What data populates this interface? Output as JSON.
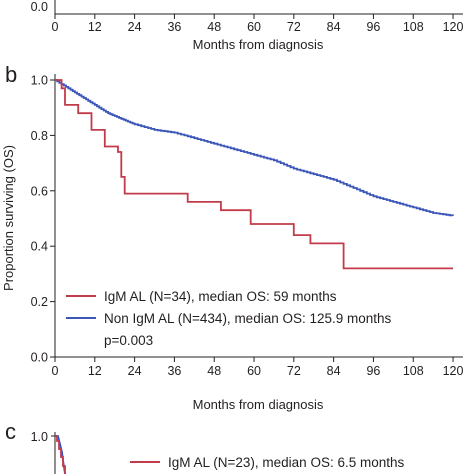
{
  "colors": {
    "red": "#c23b4a",
    "blue": "#3b55b8",
    "axis": "#231f20"
  },
  "chart_data": [
    {
      "panel": "a",
      "type": "line",
      "xlabel": "Months from diagnosis",
      "x_ticks": [
        "0",
        "12",
        "24",
        "36",
        "48",
        "60",
        "72",
        "84",
        "96",
        "108",
        "120"
      ],
      "y_ticks": [
        "0.0"
      ],
      "xlim": [
        0,
        123
      ]
    },
    {
      "panel": "b",
      "type": "line",
      "xlabel": "Months from diagnosis",
      "ylabel": "Proportion surviving (OS)",
      "x_ticks": [
        "0",
        "12",
        "24",
        "36",
        "48",
        "60",
        "72",
        "84",
        "96",
        "108",
        "120"
      ],
      "y_ticks": [
        "0.0",
        "0.2",
        "0.4",
        "0.6",
        "0.8",
        "1.0"
      ],
      "xlim": [
        0,
        123
      ],
      "ylim": [
        0,
        1
      ],
      "annotation": "p=0.003",
      "series": [
        {
          "name": "IgM AL (N=34), median OS: 59 months",
          "color": "red",
          "step_points": [
            [
              0,
              1.0
            ],
            [
              2,
              0.97
            ],
            [
              3,
              0.91
            ],
            [
              7,
              0.88
            ],
            [
              11,
              0.82
            ],
            [
              15,
              0.76
            ],
            [
              19,
              0.74
            ],
            [
              20,
              0.65
            ],
            [
              21,
              0.59
            ],
            [
              40,
              0.56
            ],
            [
              50,
              0.53
            ],
            [
              59,
              0.48
            ],
            [
              72,
              0.44
            ],
            [
              77,
              0.41
            ],
            [
              87,
              0.32
            ],
            [
              120,
              0.32
            ]
          ]
        },
        {
          "name": "Non IgM AL (N=434), median OS: 125.9 months",
          "color": "blue",
          "points": [
            [
              0,
              1.0
            ],
            [
              4,
              0.97
            ],
            [
              8,
              0.94
            ],
            [
              12,
              0.91
            ],
            [
              16,
              0.88
            ],
            [
              20,
              0.86
            ],
            [
              24,
              0.84
            ],
            [
              30,
              0.82
            ],
            [
              36,
              0.81
            ],
            [
              42,
              0.79
            ],
            [
              48,
              0.77
            ],
            [
              54,
              0.75
            ],
            [
              60,
              0.73
            ],
            [
              66,
              0.71
            ],
            [
              72,
              0.68
            ],
            [
              78,
              0.66
            ],
            [
              84,
              0.64
            ],
            [
              90,
              0.61
            ],
            [
              96,
              0.58
            ],
            [
              102,
              0.56
            ],
            [
              108,
              0.54
            ],
            [
              114,
              0.52
            ],
            [
              120,
              0.51
            ]
          ]
        }
      ]
    },
    {
      "panel": "c",
      "type": "line",
      "y_ticks": [
        "1.0"
      ],
      "series": [
        {
          "name": "IgM AL (N=23), median OS: 6.5 months",
          "color": "red"
        }
      ]
    }
  ]
}
